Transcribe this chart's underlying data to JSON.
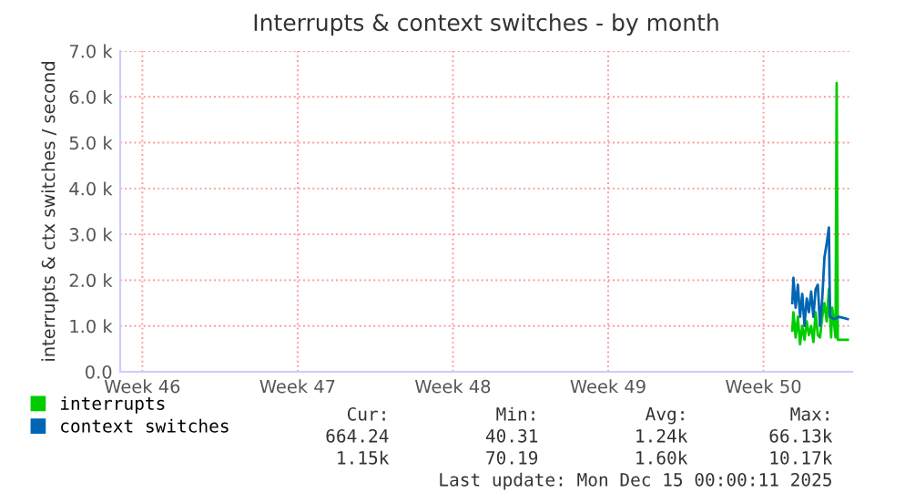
{
  "chart_data": {
    "type": "line",
    "title": "Interrupts & context switches - by month",
    "ylabel": "interrupts & ctx switches / second",
    "xlim": [
      "2025-11-12",
      "2025-12-15"
    ],
    "xticks": [
      {
        "value": "2025-11-13",
        "label": "Week 46"
      },
      {
        "value": "2025-11-20",
        "label": "Week 47"
      },
      {
        "value": "2025-11-27",
        "label": "Week 48"
      },
      {
        "value": "2025-12-04",
        "label": "Week 49"
      },
      {
        "value": "2025-12-11",
        "label": "Week 50"
      }
    ],
    "ylim": [
      0,
      7000
    ],
    "yticks": [
      {
        "value": 0,
        "label": "0.0"
      },
      {
        "value": 1000,
        "label": "1.0 k"
      },
      {
        "value": 2000,
        "label": "2.0 k"
      },
      {
        "value": 3000,
        "label": "3.0 k"
      },
      {
        "value": 4000,
        "label": "4.0 k"
      },
      {
        "value": 5000,
        "label": "5.0 k"
      },
      {
        "value": 6000,
        "label": "6.0 k"
      },
      {
        "value": 7000,
        "label": "7.0 k"
      }
    ],
    "grid": true,
    "legend": "bottom left",
    "series": [
      {
        "name": "interrupts",
        "color": "#00cc00",
        "x": [
          "2025-12-12T07:12",
          "2025-12-12T08:24",
          "2025-12-12T10:48",
          "2025-12-12T13:12",
          "2025-12-12T15:36",
          "2025-12-12T18:00",
          "2025-12-12T20:24",
          "2025-12-12T22:48",
          "2025-12-13T01:12",
          "2025-12-13T03:36",
          "2025-12-13T06:00",
          "2025-12-13T08:24",
          "2025-12-13T10:48",
          "2025-12-13T13:12",
          "2025-12-13T15:36",
          "2025-12-13T18:00",
          "2025-12-13T20:24",
          "2025-12-13T22:48",
          "2025-12-14T01:12",
          "2025-12-14T02:24",
          "2025-12-14T06:00",
          "2025-12-14T07:12",
          "2025-12-14T08:24",
          "2025-12-14T19:12"
        ],
        "values": [
          900,
          1300,
          750,
          1200,
          600,
          1000,
          700,
          1100,
          800,
          1000,
          650,
          1300,
          800,
          750,
          1200,
          1500,
          1100,
          1800,
          750,
          1400,
          750,
          6300,
          700,
          700
        ]
      },
      {
        "name": "context switches",
        "color": "#0066b3",
        "x": [
          "2025-12-12T07:12",
          "2025-12-12T08:24",
          "2025-12-12T10:48",
          "2025-12-12T13:12",
          "2025-12-12T15:36",
          "2025-12-12T18:00",
          "2025-12-12T20:24",
          "2025-12-12T22:48",
          "2025-12-13T01:12",
          "2025-12-13T03:36",
          "2025-12-13T06:00",
          "2025-12-13T08:24",
          "2025-12-13T10:48",
          "2025-12-13T13:12",
          "2025-12-13T15:36",
          "2025-12-13T18:00",
          "2025-12-13T20:24",
          "2025-12-13T22:48",
          "2025-12-14T00:00",
          "2025-12-14T04:48",
          "2025-12-14T09:36",
          "2025-12-14T19:12"
        ],
        "values": [
          1500,
          2050,
          1400,
          1900,
          1200,
          1700,
          1000,
          1600,
          1300,
          1750,
          1200,
          1800,
          1900,
          1000,
          1600,
          2500,
          2800,
          3150,
          1200,
          1150,
          1200,
          1150
        ]
      }
    ],
    "annotations": [
      "Cur:",
      "Min:",
      "Avg:",
      "Max:",
      "664.24",
      "40.31",
      "1.24k",
      "66.13k",
      "1.15k",
      "70.19",
      "1.60k",
      "10.17k",
      "Last update: Mon Dec 15 00:00:11 2025"
    ]
  }
}
